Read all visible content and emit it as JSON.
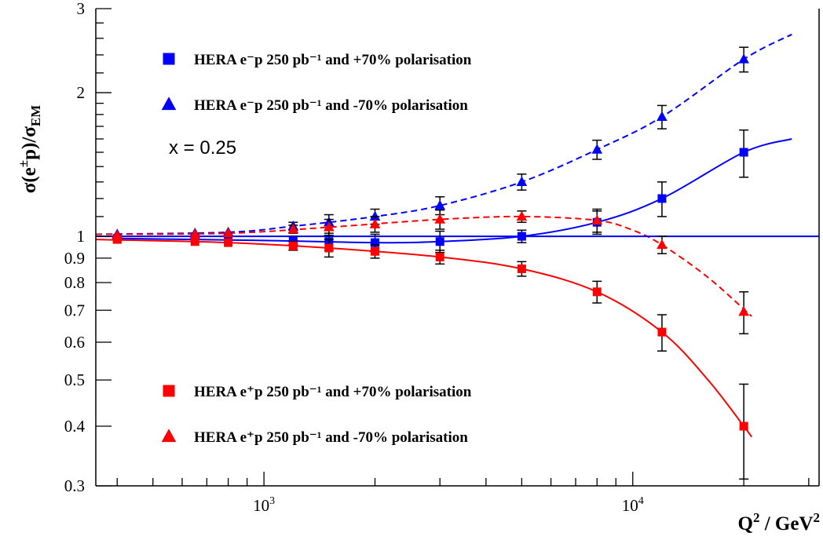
{
  "chart_data": {
    "type": "scatter",
    "title": "",
    "xlabel": "Q^2 / GeV^2",
    "ylabel": "σ(e±p)/σ_EM",
    "xscale": "log",
    "yscale": "log",
    "xlim": [
      350,
      32000
    ],
    "ylim": [
      0.3,
      3
    ],
    "grid": false,
    "annotation": "x = 0.25",
    "x_tick_labels": [
      {
        "value": 1000,
        "base": "10",
        "exp": "3"
      },
      {
        "value": 10000,
        "base": "10",
        "exp": "4"
      }
    ],
    "y_tick_labels": [
      {
        "value": 0.3,
        "label": "0.3"
      },
      {
        "value": 0.4,
        "label": "0.4"
      },
      {
        "value": 0.5,
        "label": "0.5"
      },
      {
        "value": 0.6,
        "label": "0.6"
      },
      {
        "value": 0.7,
        "label": "0.7"
      },
      {
        "value": 0.8,
        "label": "0.8"
      },
      {
        "value": 0.9,
        "label": "0.9"
      },
      {
        "value": 1,
        "label": "1"
      },
      {
        "value": 2,
        "label": "2"
      },
      {
        "value": 3,
        "label": "3"
      }
    ],
    "reference_line": 1.0,
    "legend": [
      {
        "series": 0,
        "text": "HERA e⁻p 250 pb⁻¹ and +70% polarisation",
        "position": "top-left"
      },
      {
        "series": 1,
        "text": "HERA e⁻p 250 pb⁻¹ and -70% polarisation",
        "position": "top-left"
      },
      {
        "series": 2,
        "text": "HERA e⁺p 250 pb⁻¹ and +70% polarisation",
        "position": "bottom-left"
      },
      {
        "series": 3,
        "text": "HERA e⁺p 250 pb⁻¹ and -70% polarisation",
        "position": "bottom-left"
      }
    ],
    "series": [
      {
        "name": "HERA e⁻p 250 pb⁻¹ and +70% polarisation",
        "color": "#0000ff",
        "marker": "square",
        "line": "solid",
        "points": [
          {
            "x": 400,
            "y": 0.99,
            "err": 0.0
          },
          {
            "x": 650,
            "y": 0.99,
            "err": 0.0
          },
          {
            "x": 800,
            "y": 0.985,
            "err": 0.0
          },
          {
            "x": 1200,
            "y": 0.98,
            "err": 0.02
          },
          {
            "x": 1500,
            "y": 0.975,
            "err": 0.04
          },
          {
            "x": 2000,
            "y": 0.97,
            "err": 0.04
          },
          {
            "x": 3000,
            "y": 0.975,
            "err": 0.05
          },
          {
            "x": 5000,
            "y": 1.0,
            "err": 0.03
          },
          {
            "x": 8000,
            "y": 1.07,
            "err": 0.06
          },
          {
            "x": 12000,
            "y": 1.2,
            "err": 0.1
          },
          {
            "x": 20000,
            "y": 1.5,
            "err": 0.17
          }
        ],
        "curve": [
          {
            "x": 400,
            "y": 0.99
          },
          {
            "x": 1000,
            "y": 0.98
          },
          {
            "x": 2000,
            "y": 0.97
          },
          {
            "x": 3000,
            "y": 0.975
          },
          {
            "x": 5000,
            "y": 1.0
          },
          {
            "x": 8000,
            "y": 1.07
          },
          {
            "x": 12000,
            "y": 1.2
          },
          {
            "x": 20000,
            "y": 1.5
          },
          {
            "x": 27000,
            "y": 1.6
          }
        ]
      },
      {
        "name": "HERA e⁻p 250 pb⁻¹ and -70% polarisation",
        "color": "#0000ff",
        "marker": "triangle",
        "line": "dashed",
        "points": [
          {
            "x": 400,
            "y": 1.01,
            "err": 0.0
          },
          {
            "x": 650,
            "y": 1.015,
            "err": 0.0
          },
          {
            "x": 800,
            "y": 1.02,
            "err": 0.0
          },
          {
            "x": 1200,
            "y": 1.05,
            "err": 0.02
          },
          {
            "x": 1500,
            "y": 1.07,
            "err": 0.04
          },
          {
            "x": 2000,
            "y": 1.1,
            "err": 0.04
          },
          {
            "x": 3000,
            "y": 1.16,
            "err": 0.05
          },
          {
            "x": 5000,
            "y": 1.3,
            "err": 0.05
          },
          {
            "x": 8000,
            "y": 1.52,
            "err": 0.07
          },
          {
            "x": 12000,
            "y": 1.78,
            "err": 0.1
          },
          {
            "x": 20000,
            "y": 2.35,
            "err": 0.14
          }
        ],
        "curve": [
          {
            "x": 350,
            "y": 1.01
          },
          {
            "x": 800,
            "y": 1.02
          },
          {
            "x": 1200,
            "y": 1.05
          },
          {
            "x": 2000,
            "y": 1.1
          },
          {
            "x": 3000,
            "y": 1.16
          },
          {
            "x": 5000,
            "y": 1.3
          },
          {
            "x": 8000,
            "y": 1.52
          },
          {
            "x": 12000,
            "y": 1.78
          },
          {
            "x": 20000,
            "y": 2.35
          },
          {
            "x": 27000,
            "y": 2.65
          }
        ]
      },
      {
        "name": "HERA e⁺p 250 pb⁻¹ and +70% polarisation",
        "color": "#ff0000",
        "marker": "square",
        "line": "solid",
        "points": [
          {
            "x": 400,
            "y": 0.985,
            "err": 0.0
          },
          {
            "x": 650,
            "y": 0.975,
            "err": 0.0
          },
          {
            "x": 800,
            "y": 0.97,
            "err": 0.0
          },
          {
            "x": 1200,
            "y": 0.955,
            "err": 0.02
          },
          {
            "x": 1500,
            "y": 0.945,
            "err": 0.04
          },
          {
            "x": 2000,
            "y": 0.93,
            "err": 0.03
          },
          {
            "x": 3000,
            "y": 0.905,
            "err": 0.03
          },
          {
            "x": 5000,
            "y": 0.855,
            "err": 0.03
          },
          {
            "x": 8000,
            "y": 0.765,
            "err": 0.04
          },
          {
            "x": 12000,
            "y": 0.63,
            "err": 0.055
          },
          {
            "x": 20000,
            "y": 0.4,
            "err": 0.09
          }
        ],
        "curve": [
          {
            "x": 350,
            "y": 0.985
          },
          {
            "x": 800,
            "y": 0.97
          },
          {
            "x": 1500,
            "y": 0.945
          },
          {
            "x": 3000,
            "y": 0.905
          },
          {
            "x": 5000,
            "y": 0.855
          },
          {
            "x": 8000,
            "y": 0.765
          },
          {
            "x": 12000,
            "y": 0.63
          },
          {
            "x": 16000,
            "y": 0.5
          },
          {
            "x": 20000,
            "y": 0.4
          },
          {
            "x": 21000,
            "y": 0.38
          }
        ]
      },
      {
        "name": "HERA e⁺p 250 pb⁻¹ and -70% polarisation",
        "color": "#ff0000",
        "marker": "triangle",
        "line": "dashed",
        "points": [
          {
            "x": 400,
            "y": 1.005,
            "err": 0.0
          },
          {
            "x": 650,
            "y": 1.01,
            "err": 0.0
          },
          {
            "x": 800,
            "y": 1.015,
            "err": 0.0
          },
          {
            "x": 1200,
            "y": 1.035,
            "err": 0.02
          },
          {
            "x": 1500,
            "y": 1.045,
            "err": 0.04
          },
          {
            "x": 2000,
            "y": 1.06,
            "err": 0.04
          },
          {
            "x": 3000,
            "y": 1.085,
            "err": 0.05
          },
          {
            "x": 5000,
            "y": 1.1,
            "err": 0.03
          },
          {
            "x": 8000,
            "y": 1.08,
            "err": 0.06
          },
          {
            "x": 12000,
            "y": 0.96,
            "err": 0.04
          },
          {
            "x": 20000,
            "y": 0.695,
            "err": 0.07
          }
        ],
        "curve": [
          {
            "x": 350,
            "y": 1.01
          },
          {
            "x": 800,
            "y": 1.015
          },
          {
            "x": 1500,
            "y": 1.045
          },
          {
            "x": 3000,
            "y": 1.085
          },
          {
            "x": 5000,
            "y": 1.1
          },
          {
            "x": 8000,
            "y": 1.08
          },
          {
            "x": 10000,
            "y": 1.03
          },
          {
            "x": 12000,
            "y": 0.96
          },
          {
            "x": 16000,
            "y": 0.82
          },
          {
            "x": 21000,
            "y": 0.68
          }
        ]
      }
    ]
  }
}
